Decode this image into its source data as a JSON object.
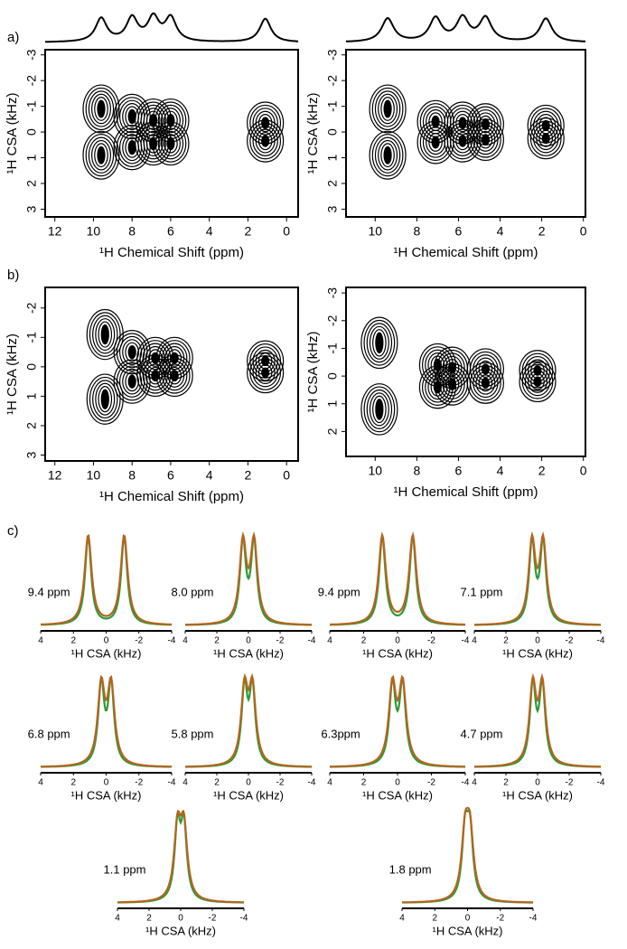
{
  "panel_labels": [
    "a)",
    "b)",
    "c)"
  ],
  "contour_plots": [
    {
      "x_label": "¹H Chemical Shift (ppm)",
      "y_label": "¹H CSA (kHz)",
      "xlim": [
        12.5,
        -0.6
      ],
      "xticks": [
        12,
        10,
        8,
        6,
        4,
        2,
        0
      ],
      "ylim": [
        -3.2,
        3.3
      ],
      "yticks": [
        -3,
        -2,
        -1,
        0,
        1,
        2,
        3
      ],
      "projection": true,
      "peaks": [
        {
          "ppm": 9.6,
          "csa": 0.9
        },
        {
          "ppm": 8.0,
          "csa": 0.6
        },
        {
          "ppm": 6.9,
          "csa": 0.45
        },
        {
          "ppm": 6.0,
          "csa": 0.45
        },
        {
          "ppm": 1.1,
          "csa": 0.35
        }
      ]
    },
    {
      "x_label": "¹H Chemical Shift (ppm)",
      "y_label": "¹H CSA (kHz)",
      "xlim": [
        11.4,
        -0.1
      ],
      "xticks": [
        10,
        8,
        6,
        4,
        2,
        0
      ],
      "ylim": [
        -3.2,
        3.3
      ],
      "yticks": [
        -3,
        -2,
        -1,
        0,
        1,
        2,
        3
      ],
      "projection": true,
      "peaks": [
        {
          "ppm": 9.4,
          "csa": 0.9
        },
        {
          "ppm": 7.1,
          "csa": 0.4
        },
        {
          "ppm": 5.8,
          "csa": 0.35
        },
        {
          "ppm": 4.7,
          "csa": 0.3
        },
        {
          "ppm": 1.8,
          "csa": 0.25
        }
      ]
    },
    {
      "x_label": "¹H Chemical Shift (ppm)",
      "y_label": "¹H CSA (kHz)",
      "xlim": [
        12.5,
        -0.6
      ],
      "xticks": [
        12,
        10,
        8,
        6,
        4,
        2,
        0
      ],
      "ylim": [
        -2.7,
        3.2
      ],
      "yticks": [
        -2,
        -1,
        0,
        1,
        2,
        3
      ],
      "projection": false,
      "peaks": [
        {
          "ppm": 9.4,
          "csa": 1.1
        },
        {
          "ppm": 8.0,
          "csa": 0.5
        },
        {
          "ppm": 6.8,
          "csa": 0.3
        },
        {
          "ppm": 5.8,
          "csa": 0.3
        },
        {
          "ppm": 1.1,
          "csa": 0.2
        }
      ]
    },
    {
      "x_label": "¹H Chemical Shift (ppm)",
      "y_label": "¹H CSA (kHz)",
      "xlim": [
        11.4,
        -0.1
      ],
      "xticks": [
        10,
        8,
        6,
        4,
        2,
        0
      ],
      "ylim": [
        -3.2,
        2.9
      ],
      "yticks": [
        -3,
        -2,
        -1,
        0,
        1,
        2
      ],
      "projection": false,
      "peaks": [
        {
          "ppm": 9.8,
          "csa": 1.2
        },
        {
          "ppm": 7.0,
          "csa": 0.4
        },
        {
          "ppm": 6.3,
          "csa": 0.3
        },
        {
          "ppm": 4.7,
          "csa": 0.25
        },
        {
          "ppm": 2.2,
          "csa": 0.2
        }
      ]
    }
  ],
  "slice_colors": {
    "experiment": "#2e9a3a",
    "fit": "#b5651d"
  },
  "slice_axis": {
    "x_label": "¹H CSA (kHz)",
    "xlim": [
      4,
      -4
    ],
    "xticks": [
      4,
      2,
      0,
      -2,
      -4
    ]
  },
  "slices": [
    {
      "label": "9.4 ppm",
      "splitting": 1.1
    },
    {
      "label": "8.0 ppm",
      "splitting": 0.35
    },
    {
      "label": "9.4 ppm",
      "splitting": 0.9
    },
    {
      "label": "7.1 ppm",
      "splitting": 0.35
    },
    {
      "label": "6.8 ppm",
      "splitting": 0.3
    },
    {
      "label": "5.8 ppm",
      "splitting": 0.25
    },
    {
      "label": "6.3ppm",
      "splitting": 0.3
    },
    {
      "label": "4.7 ppm",
      "splitting": 0.3
    },
    {
      "label": "1.1 ppm",
      "splitting": 0.2
    },
    {
      "label": "1.8 ppm",
      "splitting": 0.15
    }
  ]
}
